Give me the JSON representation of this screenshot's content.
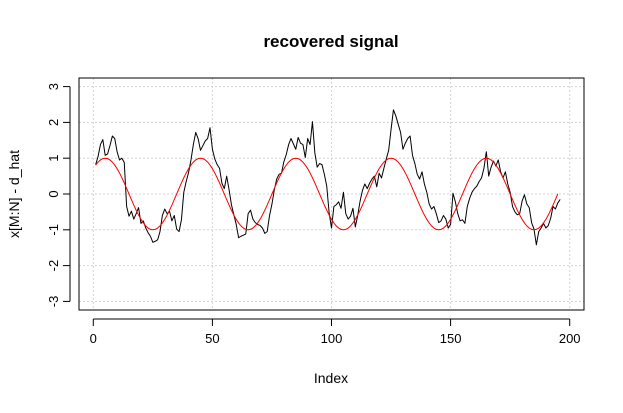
{
  "chart_data": {
    "type": "line",
    "title": "recovered signal",
    "xlabel": "Index",
    "ylabel": "x[M:N] - d_hat",
    "xlim": [
      -6,
      206
    ],
    "ylim": [
      -3.24,
      3.24
    ],
    "x_ticks": [
      0,
      50,
      100,
      150,
      200
    ],
    "y_ticks": [
      -3,
      -2,
      -1,
      0,
      1,
      2,
      3
    ],
    "grid": true,
    "legend": "none",
    "colors": {
      "noisy": "#000000",
      "sine": "#ff0000",
      "grid": "#d3d3d3",
      "axis": "#000000"
    },
    "series": [
      {
        "values": [
          0.82,
          1.05,
          1.38,
          1.52,
          1.08,
          1.12,
          1.35,
          1.62,
          1.55,
          1.18,
          0.95,
          1.0,
          0.88,
          -0.35,
          -0.62,
          -0.48,
          -0.7,
          -0.55,
          -0.38,
          -0.82,
          -0.75,
          -0.95,
          -1.08,
          -1.18,
          -1.35,
          -1.32,
          -1.28,
          -1.05,
          -0.6,
          -0.42,
          -0.55,
          -0.48,
          -0.75,
          -0.6,
          -0.98,
          -1.05,
          -0.72,
          0.05,
          0.35,
          0.6,
          0.95,
          1.38,
          1.72,
          1.55,
          1.22,
          1.35,
          1.48,
          1.55,
          1.85,
          1.25,
          0.98,
          0.82,
          0.72,
          0.3,
          0.15,
          0.5,
          0.12,
          -0.3,
          -0.58,
          -0.85,
          -1.22,
          -1.18,
          -1.15,
          -1.12,
          -0.55,
          -0.45,
          -0.7,
          -0.8,
          -0.85,
          -0.88,
          -0.95,
          -1.1,
          -1.05,
          -0.6,
          -0.28,
          0.12,
          0.42,
          0.55,
          0.58,
          0.9,
          1.1,
          1.38,
          1.55,
          1.4,
          1.25,
          1.58,
          1.42,
          1.38,
          1.02,
          1.55,
          1.38,
          2.02,
          1.15,
          0.75,
          0.85,
          0.82,
          0.55,
          0.22,
          -0.52,
          -0.95,
          -0.35,
          -0.3,
          -0.22,
          -0.4,
          0.05,
          -0.55,
          -0.7,
          -0.62,
          -0.4,
          -0.92,
          -0.6,
          -0.2,
          0.1,
          0.28,
          0.15,
          0.3,
          0.42,
          0.5,
          0.2,
          0.58,
          0.45,
          0.72,
          0.98,
          1.22,
          1.8,
          2.35,
          2.18,
          1.95,
          1.72,
          1.25,
          1.42,
          1.55,
          1.62,
          1.08,
          0.85,
          0.55,
          0.42,
          0.62,
          0.28,
          0.05,
          -0.28,
          -0.42,
          -0.35,
          -0.55,
          -0.8,
          -0.75,
          -0.6,
          -0.7,
          -0.95,
          -0.85,
          0.02,
          -0.22,
          -0.55,
          -0.75,
          -0.72,
          -0.82,
          -0.35,
          -0.12,
          0.05,
          0.15,
          0.22,
          0.35,
          0.45,
          0.72,
          1.18,
          0.5,
          0.75,
          0.92,
          0.78,
          0.95,
          0.62,
          0.45,
          0.62,
          0.28,
          0.05,
          -0.35,
          -0.5,
          -0.58,
          -0.55,
          -0.2,
          -0.02,
          -0.28,
          -0.38,
          -0.8,
          -0.98,
          -1.42,
          -1.05,
          -0.95,
          -0.82,
          -0.95,
          -0.88,
          -0.68,
          -0.35,
          -0.42,
          -0.25,
          -0.15
        ]
      },
      {
        "period": 40,
        "amplitude": 1,
        "x_start": 1,
        "x_end": 195
      }
    ]
  }
}
